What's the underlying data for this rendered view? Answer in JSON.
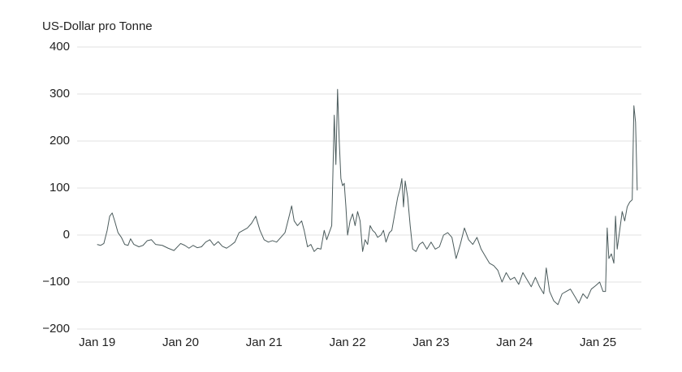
{
  "chart_data": {
    "type": "line",
    "y_label": "US-Dollar pro Tonne",
    "color": "#4b5b5c",
    "grid": true,
    "xlim": [
      2018.76,
      2025.52
    ],
    "xticks": [
      {
        "value": 2019,
        "label": "Jan 19"
      },
      {
        "value": 2020,
        "label": "Jan 20"
      },
      {
        "value": 2021,
        "label": "Jan 21"
      },
      {
        "value": 2022,
        "label": "Jan 22"
      },
      {
        "value": 2023,
        "label": "Jan 23"
      },
      {
        "value": 2024,
        "label": "Jan 24"
      },
      {
        "value": 2025,
        "label": "Jan 25"
      }
    ],
    "ylim": [
      -200,
      400
    ],
    "yticks": [
      {
        "value": -200,
        "label": "−200"
      },
      {
        "value": -100,
        "label": "−100"
      },
      0,
      100,
      200,
      300,
      400
    ],
    "x": [
      2019.0,
      2019.04,
      2019.08,
      2019.12,
      2019.15,
      2019.18,
      2019.21,
      2019.25,
      2019.29,
      2019.33,
      2019.37,
      2019.4,
      2019.44,
      2019.5,
      2019.55,
      2019.6,
      2019.65,
      2019.7,
      2019.78,
      2019.85,
      2019.92,
      2020.0,
      2020.05,
      2020.1,
      2020.15,
      2020.2,
      2020.25,
      2020.3,
      2020.35,
      2020.4,
      2020.45,
      2020.5,
      2020.55,
      2020.6,
      2020.65,
      2020.7,
      2020.75,
      2020.8,
      2020.85,
      2020.9,
      2020.95,
      2021.0,
      2021.05,
      2021.1,
      2021.15,
      2021.2,
      2021.25,
      2021.3,
      2021.33,
      2021.36,
      2021.4,
      2021.45,
      2021.48,
      2021.52,
      2021.56,
      2021.6,
      2021.64,
      2021.68,
      2021.72,
      2021.75,
      2021.78,
      2021.81,
      2021.84,
      2021.86,
      2021.88,
      2021.9,
      2021.92,
      2021.94,
      2021.96,
      2021.98,
      2022.0,
      2022.03,
      2022.06,
      2022.09,
      2022.12,
      2022.15,
      2022.18,
      2022.21,
      2022.24,
      2022.27,
      2022.3,
      2022.33,
      2022.36,
      2022.4,
      2022.43,
      2022.46,
      2022.5,
      2022.53,
      2022.56,
      2022.6,
      2022.63,
      2022.65,
      2022.67,
      2022.69,
      2022.72,
      2022.75,
      2022.78,
      2022.82,
      2022.86,
      2022.9,
      2022.95,
      2023.0,
      2023.05,
      2023.1,
      2023.15,
      2023.2,
      2023.25,
      2023.3,
      2023.35,
      2023.4,
      2023.45,
      2023.5,
      2023.55,
      2023.6,
      2023.65,
      2023.7,
      2023.75,
      2023.8,
      2023.85,
      2023.9,
      2023.95,
      2024.0,
      2024.05,
      2024.1,
      2024.15,
      2024.2,
      2024.25,
      2024.3,
      2024.35,
      2024.38,
      2024.42,
      2024.47,
      2024.52,
      2024.57,
      2024.62,
      2024.67,
      2024.72,
      2024.77,
      2024.82,
      2024.87,
      2024.92,
      2024.97,
      2025.02,
      2025.06,
      2025.09,
      2025.11,
      2025.13,
      2025.16,
      2025.19,
      2025.21,
      2025.23,
      2025.26,
      2025.29,
      2025.32,
      2025.35,
      2025.38,
      2025.41,
      2025.43,
      2025.45,
      2025.47
    ],
    "values": [
      -20,
      -22,
      -18,
      10,
      40,
      47,
      30,
      5,
      -5,
      -20,
      -22,
      -8,
      -20,
      -25,
      -22,
      -12,
      -10,
      -20,
      -22,
      -28,
      -33,
      -18,
      -22,
      -28,
      -22,
      -27,
      -25,
      -15,
      -10,
      -22,
      -14,
      -24,
      -28,
      -22,
      -15,
      5,
      10,
      15,
      25,
      40,
      10,
      -10,
      -15,
      -12,
      -15,
      -5,
      5,
      40,
      62,
      30,
      20,
      30,
      10,
      -25,
      -20,
      -35,
      -28,
      -30,
      10,
      -10,
      5,
      20,
      255,
      150,
      310,
      200,
      120,
      105,
      110,
      60,
      0,
      30,
      45,
      20,
      50,
      30,
      -35,
      -10,
      -20,
      20,
      10,
      5,
      -5,
      0,
      10,
      -15,
      5,
      10,
      40,
      80,
      100,
      120,
      60,
      115,
      80,
      20,
      -30,
      -35,
      -20,
      -15,
      -30,
      -15,
      -30,
      -25,
      0,
      5,
      -5,
      -50,
      -20,
      15,
      -10,
      -20,
      -5,
      -30,
      -45,
      -60,
      -65,
      -75,
      -100,
      -80,
      -95,
      -90,
      -105,
      -80,
      -95,
      -110,
      -90,
      -110,
      -125,
      -70,
      -120,
      -140,
      -148,
      -125,
      -120,
      -115,
      -130,
      -145,
      -125,
      -135,
      -115,
      -108,
      -100,
      -120,
      -120,
      15,
      -50,
      -40,
      -60,
      40,
      -30,
      10,
      50,
      30,
      60,
      70,
      75,
      275,
      240,
      95
    ]
  }
}
